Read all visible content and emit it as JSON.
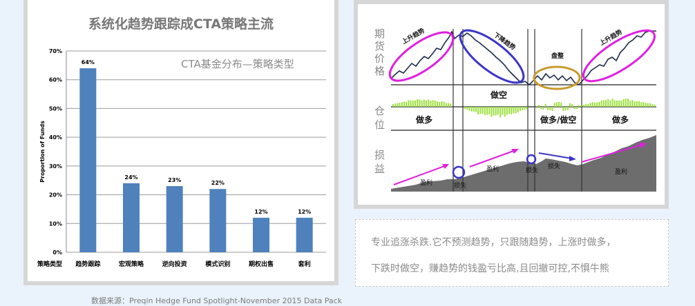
{
  "left": {
    "title": "系统化趋势跟踪成CTA策略主流",
    "subtitle": "CTA基金分布—策略类型",
    "source": "数据来源：Preqin Hedge Fund Spotlight-November 2015 Data Pack"
  },
  "chart_data": {
    "type": "bar",
    "categories": [
      "趋势跟踪",
      "宏观策略",
      "逆向投资",
      "模式识别",
      "期权出售",
      "套利"
    ],
    "values": [
      64,
      24,
      23,
      22,
      12,
      12
    ],
    "value_labels": [
      "64%",
      "24%",
      "23%",
      "22%",
      "12%",
      "12%"
    ],
    "ylabel": "Proportion of Funds",
    "xlabel": "策略类型",
    "ylim": [
      0,
      70
    ],
    "yticks": [
      0,
      10,
      20,
      30,
      40,
      50,
      60,
      70
    ],
    "ytick_labels": [
      "0%",
      "10%",
      "20%",
      "30%",
      "40%",
      "50%",
      "60%",
      "70%"
    ],
    "grid": true,
    "bar_color": "#4f81bd"
  },
  "diagram": {
    "row_labels": {
      "price": [
        "期",
        "货",
        "价",
        "格"
      ],
      "position": [
        "仓",
        "位"
      ],
      "pnl": [
        "损",
        "益"
      ]
    },
    "trend_labels": {
      "up1": "上升趋势",
      "down": "下降趋势",
      "range": "盘整",
      "up2": "上升趋势"
    },
    "position_labels": {
      "short": "做空",
      "long1": "做多",
      "mixed": "做多/做空",
      "long2": "做多"
    },
    "pnl_labels": {
      "profit1": "盈利",
      "loss1": "损失",
      "profit2": "盈利",
      "loss2": "损失",
      "loss3": "损失",
      "profit3": "盈利"
    },
    "colors": {
      "magenta": "#e01fe0",
      "blue": "#3a34c8",
      "gold": "#c89a2a",
      "green": "#9be03a"
    }
  },
  "description": {
    "line1": "专业追涨杀跌.它不预测趋势，只跟随趋势，上涨时做多，",
    "line2": "下跌时做空，赚趋势的钱盈亏比高,且回撤可控,不惧牛熊"
  }
}
